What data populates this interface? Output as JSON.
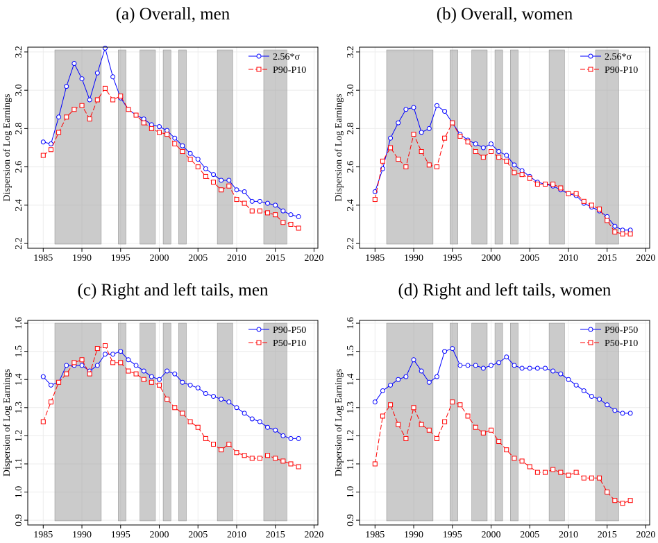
{
  "chart_data": [
    {
      "type": "line",
      "title": "(a) Overall, men",
      "y_label": "Dispersion of Log Earnings",
      "x": [
        1985,
        1986,
        1987,
        1988,
        1989,
        1990,
        1991,
        1992,
        1993,
        1994,
        1995,
        1996,
        1997,
        1998,
        1999,
        2000,
        2001,
        2002,
        2003,
        2004,
        2005,
        2006,
        2007,
        2008,
        2009,
        2010,
        2011,
        2012,
        2013,
        2014,
        2015,
        2016,
        2017,
        2018
      ],
      "series": [
        {
          "name": "2.56*σ",
          "color": "#0000ff",
          "marker": "circle",
          "line_style": "solid",
          "values": [
            2.73,
            2.72,
            2.86,
            3.02,
            3.14,
            3.06,
            2.95,
            3.09,
            3.22,
            3.07,
            2.96,
            2.9,
            2.87,
            2.85,
            2.82,
            2.81,
            2.79,
            2.75,
            2.71,
            2.67,
            2.64,
            2.59,
            2.56,
            2.53,
            2.53,
            2.48,
            2.47,
            2.42,
            2.42,
            2.41,
            2.4,
            2.37,
            2.35,
            2.34
          ]
        },
        {
          "name": "P90-P10",
          "color": "#ff0000",
          "marker": "square",
          "line_style": "dashed",
          "values": [
            2.66,
            2.69,
            2.78,
            2.86,
            2.9,
            2.92,
            2.85,
            2.95,
            3.01,
            2.95,
            2.97,
            2.9,
            2.87,
            2.83,
            2.8,
            2.78,
            2.77,
            2.72,
            2.68,
            2.64,
            2.6,
            2.55,
            2.52,
            2.48,
            2.5,
            2.43,
            2.41,
            2.37,
            2.37,
            2.36,
            2.35,
            2.31,
            2.3,
            2.28
          ]
        }
      ],
      "xlim": [
        1983,
        2020.5
      ],
      "ylim": [
        2.175,
        3.225
      ],
      "xticks": [
        1985,
        1990,
        1995,
        2000,
        2005,
        2010,
        2015,
        2020
      ],
      "yticks": [
        2.2,
        2.4,
        2.6,
        2.8,
        {
          "value": 3,
          "label": "3.0"
        },
        3.2
      ],
      "shaded_regions": [
        [
          1986.5,
          1992.5
        ],
        [
          1994.7,
          1995.7
        ],
        [
          1997.5,
          1999.5
        ],
        [
          2000.5,
          2001.5
        ],
        [
          2002.5,
          2003.5
        ],
        [
          2007.5,
          2009.5
        ],
        [
          2013.5,
          2016.5
        ]
      ],
      "grid": true,
      "legend": "upper right"
    },
    {
      "type": "line",
      "title": "(b) Overall, women",
      "y_label": "Dispersion of Log Earnings",
      "x": [
        1985,
        1986,
        1987,
        1988,
        1989,
        1990,
        1991,
        1992,
        1993,
        1994,
        1995,
        1996,
        1997,
        1998,
        1999,
        2000,
        2001,
        2002,
        2003,
        2004,
        2005,
        2006,
        2007,
        2008,
        2009,
        2010,
        2011,
        2012,
        2013,
        2014,
        2015,
        2016,
        2017,
        2018
      ],
      "series": [
        {
          "name": "2.56*σ",
          "color": "#0000ff",
          "marker": "circle",
          "line_style": "solid",
          "values": [
            2.47,
            2.59,
            2.75,
            2.83,
            2.9,
            2.91,
            2.78,
            2.8,
            2.92,
            2.89,
            2.83,
            2.77,
            2.74,
            2.72,
            2.7,
            2.72,
            2.68,
            2.66,
            2.61,
            2.58,
            2.55,
            2.52,
            2.51,
            2.5,
            2.48,
            2.46,
            2.45,
            2.41,
            2.39,
            2.37,
            2.34,
            2.29,
            2.27,
            2.27
          ]
        },
        {
          "name": "P90-P10",
          "color": "#ff0000",
          "marker": "square",
          "line_style": "dashed",
          "values": [
            2.43,
            2.63,
            2.7,
            2.64,
            2.6,
            2.77,
            2.68,
            2.61,
            2.6,
            2.75,
            2.83,
            2.76,
            2.73,
            2.68,
            2.65,
            2.68,
            2.65,
            2.63,
            2.57,
            2.56,
            2.54,
            2.51,
            2.51,
            2.51,
            2.49,
            2.46,
            2.46,
            2.42,
            2.4,
            2.38,
            2.32,
            2.26,
            2.25,
            2.25
          ]
        }
      ],
      "xlim": [
        1983,
        2020.5
      ],
      "ylim": [
        2.175,
        3.225
      ],
      "xticks": [
        1985,
        1990,
        1995,
        2000,
        2005,
        2010,
        2015,
        2020
      ],
      "yticks": [
        2.2,
        2.4,
        2.6,
        2.8,
        {
          "value": 3,
          "label": "3.0"
        },
        3.2
      ],
      "shaded_regions": [
        [
          1986.5,
          1992.5
        ],
        [
          1994.7,
          1995.7
        ],
        [
          1997.5,
          1999.5
        ],
        [
          2000.5,
          2001.5
        ],
        [
          2002.5,
          2003.5
        ],
        [
          2007.5,
          2009.5
        ],
        [
          2013.5,
          2016.5
        ]
      ],
      "grid": true,
      "legend": "upper right"
    },
    {
      "type": "line",
      "title": "(c) Right and left tails, men",
      "y_label": "Dispersion of Log Earnings",
      "x": [
        1985,
        1986,
        1987,
        1988,
        1989,
        1990,
        1991,
        1992,
        1993,
        1994,
        1995,
        1996,
        1997,
        1998,
        1999,
        2000,
        2001,
        2002,
        2003,
        2004,
        2005,
        2006,
        2007,
        2008,
        2009,
        2010,
        2011,
        2012,
        2013,
        2014,
        2015,
        2016,
        2017,
        2018
      ],
      "series": [
        {
          "name": "P90-P50",
          "color": "#0000ff",
          "marker": "circle",
          "line_style": "solid",
          "values": [
            1.41,
            1.38,
            1.39,
            1.45,
            1.45,
            1.45,
            1.43,
            1.45,
            1.49,
            1.49,
            1.5,
            1.47,
            1.45,
            1.43,
            1.41,
            1.4,
            1.43,
            1.42,
            1.39,
            1.38,
            1.37,
            1.35,
            1.34,
            1.33,
            1.32,
            1.3,
            1.28,
            1.26,
            1.25,
            1.23,
            1.22,
            1.2,
            1.19,
            1.19
          ]
        },
        {
          "name": "P50-P10",
          "color": "#ff0000",
          "marker": "square",
          "line_style": "dashed",
          "values": [
            1.25,
            1.32,
            1.39,
            1.42,
            1.46,
            1.47,
            1.42,
            1.51,
            1.52,
            1.46,
            1.46,
            1.43,
            1.42,
            1.4,
            1.39,
            1.38,
            1.33,
            1.3,
            1.28,
            1.25,
            1.23,
            1.19,
            1.17,
            1.15,
            1.17,
            1.14,
            1.13,
            1.12,
            1.12,
            1.13,
            1.12,
            1.11,
            1.1,
            1.09
          ]
        }
      ],
      "xlim": [
        1983,
        2020.5
      ],
      "ylim": [
        0.883,
        1.61
      ],
      "xticks": [
        1985,
        1990,
        1995,
        2000,
        2005,
        2010,
        2015,
        2020
      ],
      "yticks": [
        0.9,
        {
          "value": 1,
          "label": "1.0"
        },
        1.1,
        1.2,
        1.3,
        1.4,
        1.5,
        1.6
      ],
      "shaded_regions": [
        [
          1986.5,
          1992.5
        ],
        [
          1994.7,
          1995.7
        ],
        [
          1997.5,
          1999.5
        ],
        [
          2000.5,
          2001.5
        ],
        [
          2002.5,
          2003.5
        ],
        [
          2007.5,
          2009.5
        ],
        [
          2013.5,
          2016.5
        ]
      ],
      "grid": true,
      "legend": "upper right"
    },
    {
      "type": "line",
      "title": "(d) Right and left tails, women",
      "y_label": "Dispersion of Log Earnings",
      "x": [
        1985,
        1986,
        1987,
        1988,
        1989,
        1990,
        1991,
        1992,
        1993,
        1994,
        1995,
        1996,
        1997,
        1998,
        1999,
        2000,
        2001,
        2002,
        2003,
        2004,
        2005,
        2006,
        2007,
        2008,
        2009,
        2010,
        2011,
        2012,
        2013,
        2014,
        2015,
        2016,
        2017,
        2018
      ],
      "series": [
        {
          "name": "P90-P50",
          "color": "#0000ff",
          "marker": "circle",
          "line_style": "solid",
          "values": [
            1.32,
            1.36,
            1.38,
            1.4,
            1.41,
            1.47,
            1.43,
            1.39,
            1.41,
            1.5,
            1.51,
            1.45,
            1.45,
            1.45,
            1.44,
            1.45,
            1.46,
            1.48,
            1.45,
            1.44,
            1.44,
            1.44,
            1.44,
            1.43,
            1.42,
            1.4,
            1.38,
            1.36,
            1.34,
            1.33,
            1.31,
            1.29,
            1.28,
            1.28
          ]
        },
        {
          "name": "P50-P10",
          "color": "#ff0000",
          "marker": "square",
          "line_style": "dashed",
          "values": [
            1.1,
            1.27,
            1.31,
            1.24,
            1.19,
            1.3,
            1.24,
            1.22,
            1.19,
            1.25,
            1.32,
            1.31,
            1.27,
            1.23,
            1.21,
            1.22,
            1.18,
            1.15,
            1.12,
            1.11,
            1.09,
            1.07,
            1.07,
            1.08,
            1.07,
            1.06,
            1.07,
            1.05,
            1.05,
            1.05,
            1.0,
            0.97,
            0.96,
            0.97
          ]
        }
      ],
      "xlim": [
        1983,
        2020.5
      ],
      "ylim": [
        0.883,
        1.61
      ],
      "xticks": [
        1985,
        1990,
        1995,
        2000,
        2005,
        2010,
        2015,
        2020
      ],
      "yticks": [
        0.9,
        {
          "value": 1,
          "label": "1.0"
        },
        1.1,
        1.2,
        1.3,
        1.4,
        1.5,
        1.6
      ],
      "shaded_regions": [
        [
          1986.5,
          1992.5
        ],
        [
          1994.7,
          1995.7
        ],
        [
          1997.5,
          1999.5
        ],
        [
          2000.5,
          2001.5
        ],
        [
          2002.5,
          2003.5
        ],
        [
          2007.5,
          2009.5
        ],
        [
          2013.5,
          2016.5
        ]
      ],
      "grid": true,
      "legend": "upper right"
    }
  ]
}
